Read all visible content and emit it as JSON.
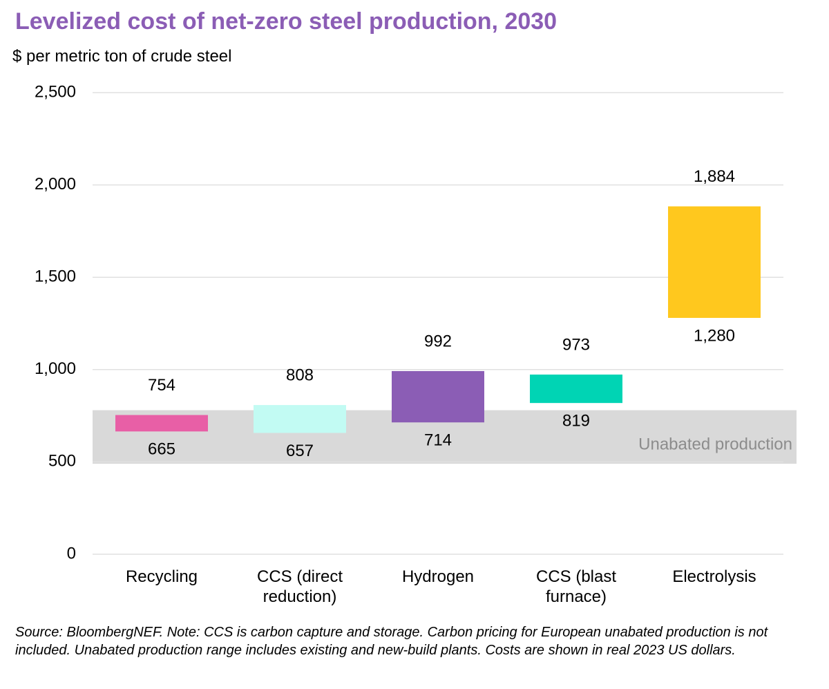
{
  "chart_data": {
    "type": "floating_bar",
    "title": "Levelized cost of net-zero steel production, 2030",
    "subtitle": "$ per metric ton of crude steel",
    "categories": [
      "Recycling",
      "CCS (direct reduction)",
      "Hydrogen",
      "CCS (blast furnace)",
      "Electrolysis"
    ],
    "low": {
      "values": [
        665,
        657,
        714,
        819,
        1280
      ],
      "value_labels": [
        "665",
        "657",
        "714",
        "819",
        "1,280"
      ]
    },
    "high": {
      "values": [
        754,
        808,
        992,
        973,
        1884
      ],
      "value_labels": [
        "754",
        "808",
        "992",
        "973",
        "1,884"
      ]
    },
    "colors": [
      "#e85fa6",
      "#c2fbf3",
      "#8b5db5",
      "#00d4b4",
      "#ffc81e"
    ],
    "band": {
      "label": "Unabated production",
      "range": [
        490,
        780
      ],
      "color": "#d9d9d9"
    },
    "ylim": [
      0,
      2500
    ],
    "yticks": [
      0,
      500,
      {
        "value": 1000,
        "label": "1,000"
      },
      {
        "value": 1500,
        "label": "1,500"
      },
      {
        "value": 2000,
        "label": "2,000"
      },
      {
        "value": 2500,
        "label": "2,500"
      }
    ],
    "grid": true,
    "note": "Source: BloombergNEF. Note: CCS is carbon capture and storage. Carbon pricing for European unabated production is not included. Unabated production range includes existing and new-build plants. Costs are shown in real 2023 US dollars."
  }
}
